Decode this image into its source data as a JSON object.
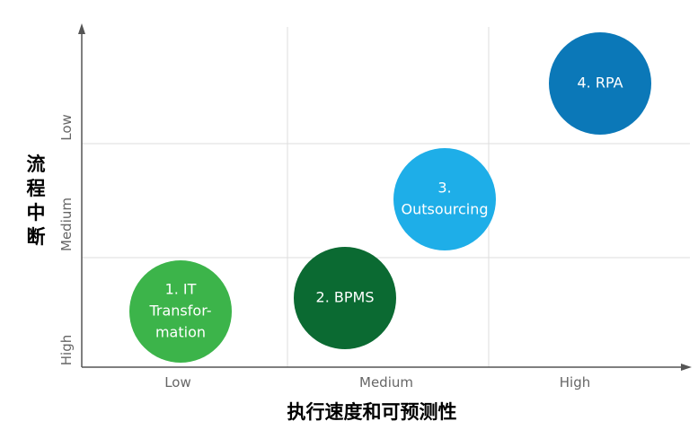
{
  "x_axis": {
    "title": "执行速度和可预测性",
    "labels": [
      "Low",
      "Medium",
      "High"
    ]
  },
  "y_axis": {
    "title": "流程中断",
    "labels": [
      "Low",
      "Medium",
      "High"
    ]
  },
  "nodes": [
    {
      "lines": [
        "1. IT",
        "Transfor-",
        "mation"
      ],
      "color": "#3cb44a"
    },
    {
      "lines": [
        "2. BPMS"
      ],
      "color": "#0b6a32"
    },
    {
      "lines": [
        "3.",
        "Outsourcing"
      ],
      "color": "#1eaee8"
    },
    {
      "lines": [
        "4. RPA"
      ],
      "color": "#0b78b8"
    }
  ]
}
